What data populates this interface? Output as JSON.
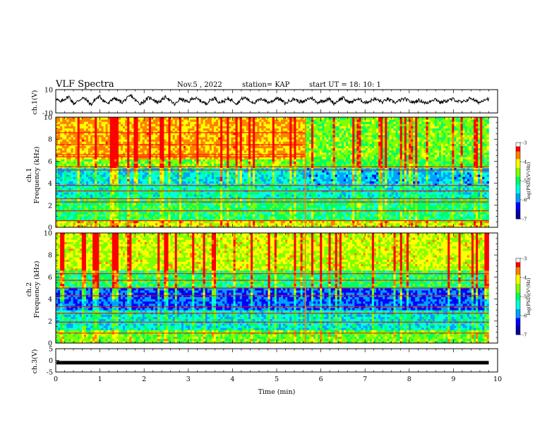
{
  "header": {
    "title": "VLF Spectra",
    "date": "Nov.5 , 2022",
    "station": "station= KAP",
    "start": "start UT = 18: 10: 1"
  },
  "chart_data": [
    {
      "type": "line",
      "panel": "ch1-waveform",
      "ylabel": "ch.1(V)",
      "ylim": [
        -10,
        10
      ],
      "xlim": [
        0,
        9.8
      ],
      "x_step": 0.1,
      "values": [
        3,
        -1,
        2,
        4,
        -2,
        0,
        3,
        1,
        -3,
        2,
        4,
        0,
        -2,
        3,
        1,
        -1,
        2,
        5,
        1,
        -2,
        0,
        3,
        2,
        -1,
        1,
        4,
        0,
        -3,
        2,
        1,
        -1,
        3,
        2,
        0,
        -2,
        1,
        3,
        -1,
        0,
        2,
        1,
        -2,
        2,
        3,
        0,
        -1,
        1,
        2,
        -1,
        0,
        3,
        1,
        -2,
        1,
        2,
        0,
        -1,
        2,
        3,
        -1,
        0,
        1,
        2,
        -2,
        1,
        3,
        0,
        -1,
        2,
        1,
        -1,
        0,
        2,
        1,
        -1,
        2,
        0,
        -1,
        1,
        2,
        0,
        -1,
        1,
        0,
        -2,
        1,
        2,
        -1,
        0,
        1,
        2,
        0,
        -1,
        1,
        3,
        0,
        -1,
        2
      ]
    },
    {
      "type": "heatmap",
      "panel": "ch1-spectrogram",
      "ylabel": "ch.1\nFrequency (kHz)",
      "ylim": [
        0,
        10
      ],
      "xlim": [
        0,
        9.8
      ],
      "colorbar": {
        "label": "log(PSD)(V²/Hz)",
        "range": [
          -7,
          -3
        ],
        "ticks": [
          "-3",
          "-4",
          "-5",
          "-6",
          "-7"
        ]
      }
    },
    {
      "type": "heatmap",
      "panel": "ch2-spectrogram",
      "ylabel": "ch.2\nFrequency (kHz)",
      "ylim": [
        0,
        10
      ],
      "xlim": [
        0,
        9.8
      ],
      "colorbar": {
        "label": "log(PSD)(V²/Hz)",
        "range": [
          -7,
          -3
        ],
        "ticks": [
          "-3",
          "-4",
          "-5",
          "-6",
          "-7"
        ]
      }
    },
    {
      "type": "line",
      "panel": "ch3-waveform",
      "ylabel": "ch.3(V)",
      "ylim": [
        -5,
        5
      ],
      "xlim": [
        0,
        9.8
      ],
      "values": [
        -1,
        -1
      ]
    }
  ],
  "axes": {
    "xlabel": "Time (min)",
    "xticks": [
      "0",
      "1",
      "2",
      "3",
      "4",
      "5",
      "6",
      "7",
      "8",
      "9",
      "10"
    ],
    "ch1_wave_ylabel": "ch.1(V)",
    "ch1_wave_yticks": [
      "10",
      "-10"
    ],
    "ch1_spec_ylabel_a": "ch.1",
    "ch1_spec_ylabel_b": "Frequency (kHz)",
    "spec_yticks": [
      "0",
      "2",
      "4",
      "6",
      "8",
      "10"
    ],
    "ch2_spec_ylabel_a": "ch.2",
    "ch2_spec_ylabel_b": "Frequency (kHz)",
    "ch3_wave_ylabel": "ch.3(V)",
    "ch3_wave_yticks": [
      "5",
      "0",
      "-5"
    ],
    "colorbar_label": "log(PSD)(V²/Hz)",
    "colorbar_ticks": [
      "-3",
      "-4",
      "-5",
      "-6",
      "-7"
    ]
  },
  "colors": {
    "colormap": [
      "#0000a0",
      "#0000ff",
      "#00a0ff",
      "#00ffe0",
      "#00ff60",
      "#80ff00",
      "#ffff00",
      "#ff8000",
      "#ff0000",
      "#ffffff"
    ]
  }
}
